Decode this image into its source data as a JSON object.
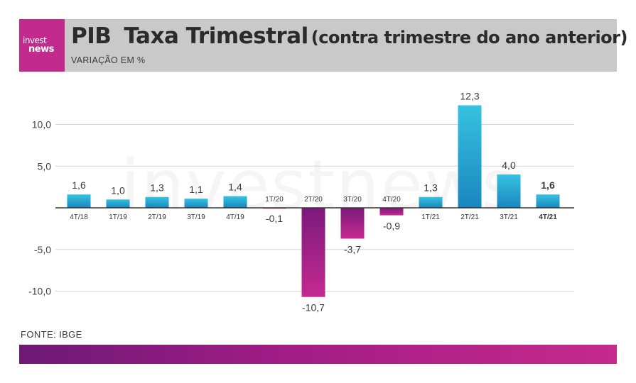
{
  "header": {
    "logo_line1": "invest",
    "logo_line2": "news",
    "title_main": "PIB",
    "title_secondary": "Taxa Trimestral",
    "title_paren": "(contra trimestre do ano anterior)",
    "subtitle": "VARIAÇÃO EM %"
  },
  "watermark": "investnews",
  "source": "FONTE: IBGE",
  "colors": {
    "positive": "#2aa9d6",
    "positive_dark": "#1a8cc4",
    "negative": "#b51c8f",
    "negative_dark": "#8a1a7d",
    "header_bg": "#c9c9c9",
    "logo_bg": "#c22a8e"
  },
  "chart_data": {
    "type": "bar",
    "categories": [
      "4T/18",
      "1T/19",
      "2T/19",
      "3T/19",
      "4T/19",
      "1T/20",
      "2T/20",
      "3T/20",
      "4T/20",
      "1T/21",
      "2T/21",
      "3T/21",
      "4T/21"
    ],
    "values": [
      1.6,
      1.0,
      1.3,
      1.1,
      1.4,
      -0.1,
      -10.7,
      -3.7,
      -0.9,
      1.3,
      12.3,
      4.0,
      1.6
    ],
    "value_labels": [
      "1,6",
      "1,0",
      "1,3",
      "1,1",
      "1,4",
      "-0,1",
      "-10,7",
      "-3,7",
      "-0,9",
      "1,3",
      "12,3",
      "4,0",
      "1,6"
    ],
    "highlight_last": true,
    "yticks": [
      10,
      5,
      -5,
      -10
    ],
    "ytick_labels": [
      "10,0",
      "5,0",
      "-5,0",
      "-10,0"
    ],
    "ylim": [
      -13,
      13
    ],
    "grid": true,
    "legend": "none"
  }
}
